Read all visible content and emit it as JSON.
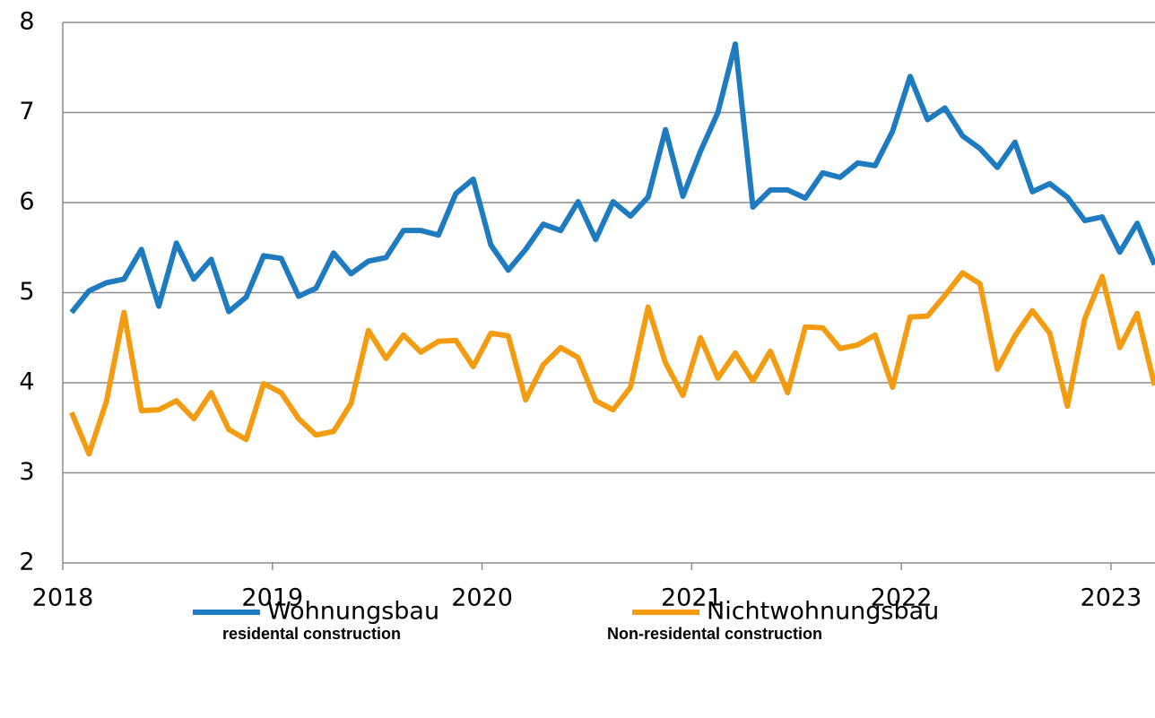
{
  "chart_data": {
    "type": "line",
    "x": [
      2018.042,
      2018.125,
      2018.208,
      2018.292,
      2018.375,
      2018.458,
      2018.542,
      2018.625,
      2018.708,
      2018.792,
      2018.875,
      2018.958,
      2019.042,
      2019.125,
      2019.208,
      2019.292,
      2019.375,
      2019.458,
      2019.542,
      2019.625,
      2019.708,
      2019.792,
      2019.875,
      2019.958,
      2020.042,
      2020.125,
      2020.208,
      2020.292,
      2020.375,
      2020.458,
      2020.542,
      2020.625,
      2020.708,
      2020.792,
      2020.875,
      2020.958,
      2021.042,
      2021.125,
      2021.208,
      2021.292,
      2021.375,
      2021.458,
      2021.542,
      2021.625,
      2021.708,
      2021.792,
      2021.875,
      2021.958,
      2022.042,
      2022.125,
      2022.208,
      2022.292,
      2022.375,
      2022.458,
      2022.542,
      2022.625,
      2022.708,
      2022.792,
      2022.875,
      2022.958,
      2023.042,
      2023.125,
      2023.208
    ],
    "series": [
      {
        "name": "Wohnungsbau",
        "color": "#1f7bbf",
        "values": [
          4.78,
          5.02,
          5.11,
          5.15,
          5.48,
          4.85,
          5.55,
          5.15,
          5.37,
          4.79,
          4.95,
          5.41,
          5.38,
          4.96,
          5.05,
          5.44,
          5.21,
          5.35,
          5.39,
          5.69,
          5.69,
          5.64,
          6.1,
          6.26,
          5.53,
          5.25,
          5.48,
          5.76,
          5.69,
          6.01,
          5.59,
          6.01,
          5.85,
          6.06,
          6.81,
          6.07,
          6.57,
          7.0,
          7.76,
          5.95,
          6.14,
          6.14,
          6.05,
          6.33,
          6.28,
          6.44,
          6.41,
          6.79,
          7.4,
          6.92,
          7.05,
          6.74,
          6.6,
          6.39,
          6.67,
          6.12,
          6.21,
          6.06,
          5.8,
          5.84,
          5.45,
          5.77,
          5.31
        ]
      },
      {
        "name": "Nichtwohnungsbau",
        "color": "#f39c12",
        "values": [
          3.67,
          3.21,
          3.79,
          4.78,
          3.69,
          3.7,
          3.8,
          3.6,
          3.89,
          3.48,
          3.37,
          3.99,
          3.89,
          3.6,
          3.42,
          3.46,
          3.77,
          4.58,
          4.27,
          4.53,
          4.34,
          4.46,
          4.47,
          4.18,
          4.55,
          4.52,
          3.81,
          4.2,
          4.39,
          4.28,
          3.8,
          3.7,
          3.95,
          4.84,
          4.22,
          3.86,
          4.5,
          4.05,
          4.33,
          4.02,
          4.35,
          3.89,
          4.62,
          4.61,
          4.38,
          4.42,
          4.53,
          3.95,
          4.73,
          4.74,
          4.97,
          5.22,
          5.1,
          4.15,
          4.52,
          4.8,
          4.55,
          3.74,
          4.71,
          5.18,
          4.39,
          4.77,
          3.97
        ]
      }
    ],
    "annotations": [
      "residental construction",
      "Non-residental construction"
    ],
    "xlim": [
      2018,
      2023.21
    ],
    "xticks": [
      2018,
      2019,
      2020,
      2021,
      2022,
      2023
    ],
    "ylim": [
      2,
      8
    ],
    "yticks": [
      2,
      3,
      4,
      5,
      6,
      7,
      8
    ],
    "grid": true,
    "legend": "bottom"
  }
}
